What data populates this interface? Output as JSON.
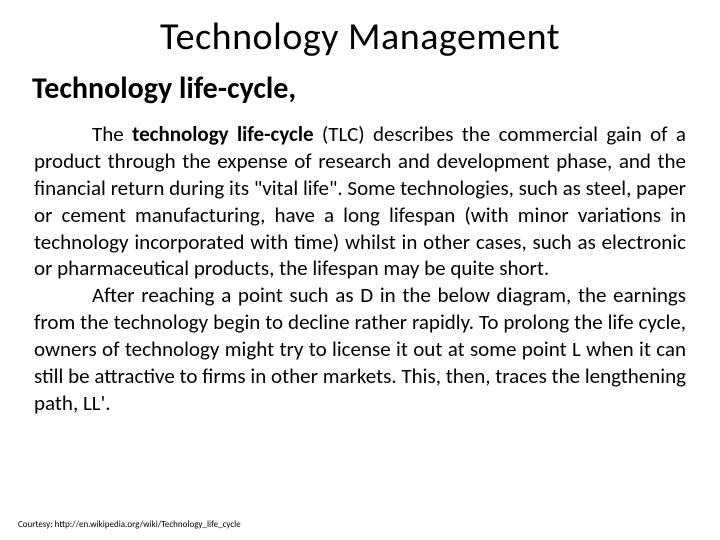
{
  "title": "Technology  Management",
  "subtitle": "Technology life-cycle,",
  "para1_lead": "technology life-cycle",
  "para1_rest": " (TLC) describes the commercial gain of a product through the expense of research and development phase, and the financial return during its \"vital life\". Some technologies, such as steel, paper or cement manufacturing, have a long lifespan (with minor variations in technology incorporated with time) whilst in other cases, such as electronic or pharmaceutical products, the lifespan may be quite short.",
  "para1_prefix": "The ",
  "para2": "After reaching a point such as D in the below diagram, the earnings from the technology begin to decline rather rapidly. To prolong the life cycle, owners of technology might try to license it out at some point L when it can still be attractive to firms in other markets. This, then, traces the lengthening path, LL'.",
  "courtesy": "Courtesy: http://en.wikipedia.org/wiki/Technology_life_cycle",
  "colors": {
    "background": "#ffffff",
    "text": "#000000"
  },
  "fonts": {
    "title_size": 38,
    "subtitle_size": 30,
    "body_size": 21,
    "courtesy_size": 9
  }
}
